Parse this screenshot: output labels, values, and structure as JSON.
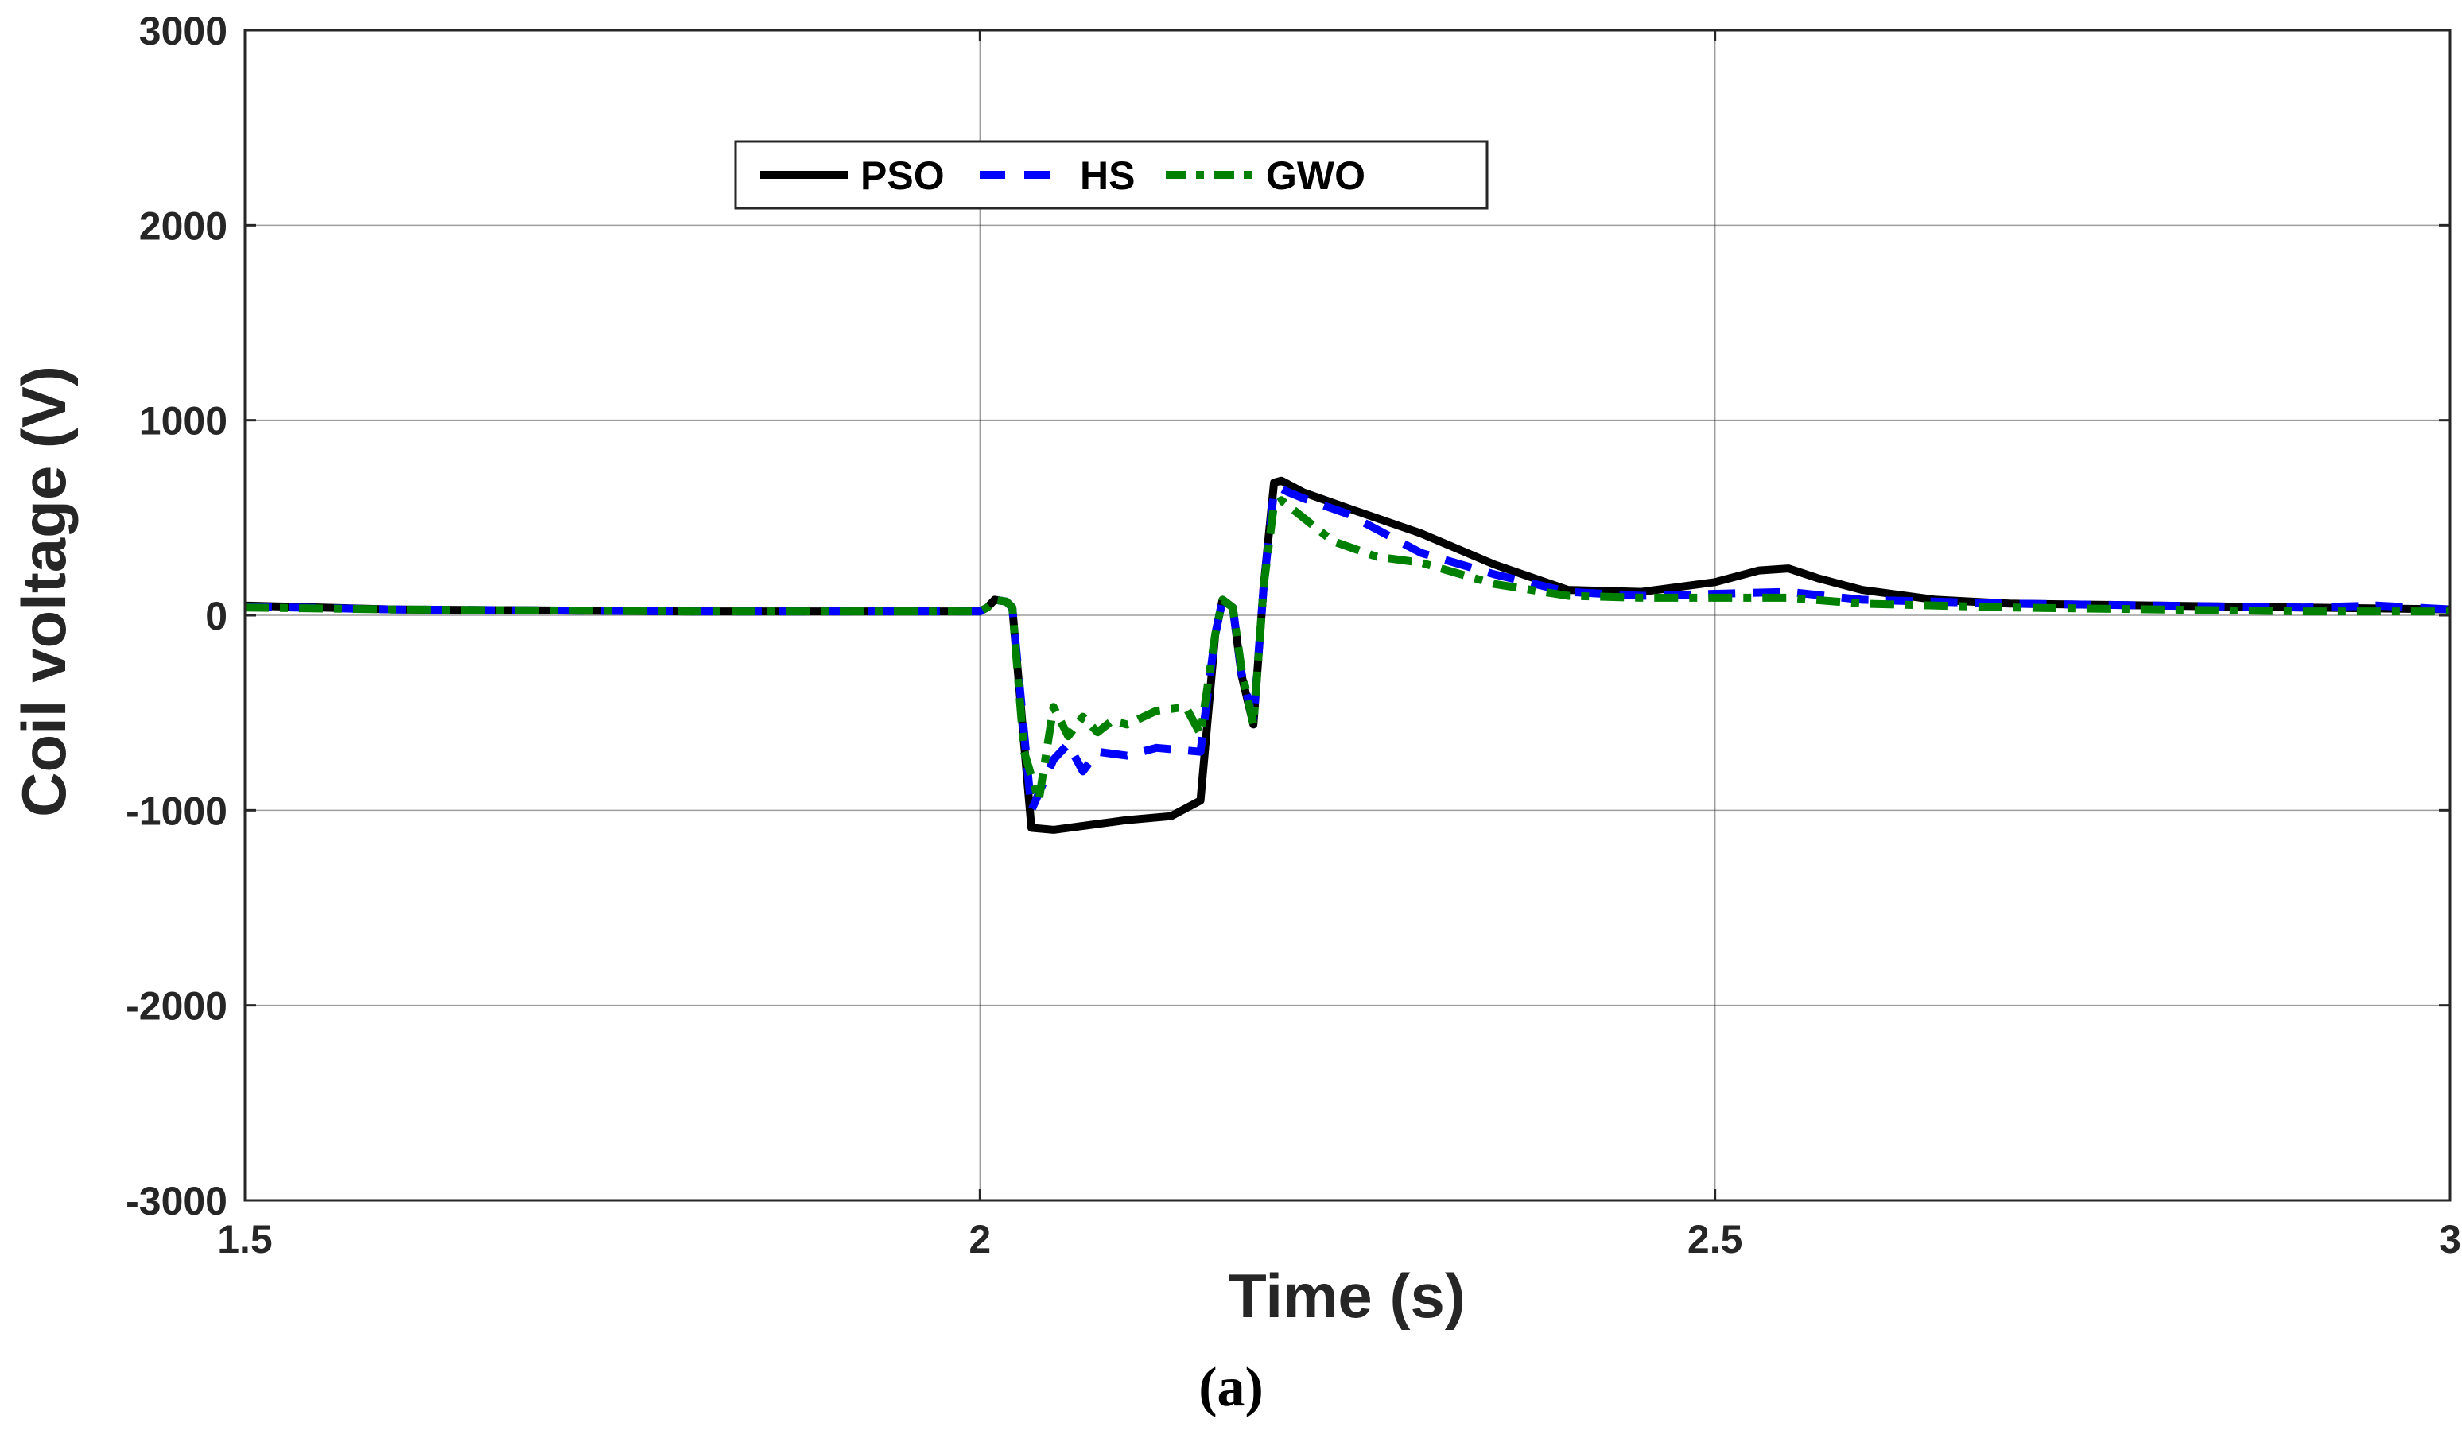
{
  "chart_data": {
    "type": "line",
    "xlabel": "Time (s)",
    "ylabel": "Coil voltage (V)",
    "caption": "(a)",
    "xlim": [
      1.5,
      3
    ],
    "ylim": [
      -3000,
      3000
    ],
    "x_ticks": [
      1.5,
      2,
      2.5,
      3
    ],
    "x_tick_labels": [
      "1.5",
      "2",
      "2.5",
      "3"
    ],
    "y_ticks": [
      -3000,
      -2000,
      -1000,
      0,
      1000,
      2000,
      3000
    ],
    "y_tick_labels": [
      "-3000",
      "-2000",
      "-1000",
      "0",
      "1000",
      "2000",
      "3000"
    ],
    "grid": true,
    "legend_position": "top-left",
    "legend_orientation": "horizontal",
    "series": [
      {
        "name": "PSO",
        "color": "#000000",
        "style": "solid",
        "x": [
          1.5,
          1.6,
          1.8,
          2.0,
          2.005,
          2.01,
          2.018,
          2.022,
          2.035,
          2.05,
          2.08,
          2.1,
          2.13,
          2.15,
          2.16,
          2.165,
          2.172,
          2.178,
          2.186,
          2.193,
          2.2,
          2.205,
          2.21,
          2.22,
          2.25,
          2.3,
          2.35,
          2.4,
          2.45,
          2.5,
          2.53,
          2.55,
          2.57,
          2.6,
          2.65,
          2.7,
          2.8,
          2.9,
          3.0
        ],
        "y": [
          50,
          30,
          20,
          20,
          40,
          80,
          70,
          40,
          -1090,
          -1100,
          -1070,
          -1050,
          -1030,
          -950,
          -100,
          80,
          40,
          -310,
          -560,
          150,
          680,
          690,
          670,
          630,
          550,
          420,
          260,
          130,
          120,
          170,
          230,
          240,
          190,
          130,
          80,
          60,
          50,
          40,
          30
        ]
      },
      {
        "name": "HS",
        "color": "#0000ff",
        "style": "dashed",
        "x": [
          1.5,
          1.6,
          1.8,
          2.0,
          2.005,
          2.01,
          2.018,
          2.022,
          2.035,
          2.05,
          2.06,
          2.07,
          2.08,
          2.1,
          2.12,
          2.15,
          2.16,
          2.165,
          2.172,
          2.178,
          2.186,
          2.193,
          2.2,
          2.205,
          2.21,
          2.22,
          2.25,
          2.3,
          2.35,
          2.4,
          2.45,
          2.5,
          2.55,
          2.6,
          2.7,
          2.8,
          2.9,
          2.95,
          3.0
        ],
        "y": [
          45,
          30,
          20,
          20,
          40,
          80,
          70,
          40,
          -1000,
          -740,
          -660,
          -800,
          -700,
          -720,
          -680,
          -700,
          -100,
          80,
          40,
          -300,
          -540,
          150,
          640,
          650,
          630,
          600,
          520,
          320,
          210,
          120,
          100,
          110,
          120,
          80,
          60,
          50,
          40,
          50,
          30
        ]
      },
      {
        "name": "GWO",
        "color": "#008000",
        "style": "dashdot",
        "x": [
          1.5,
          1.6,
          1.8,
          2.0,
          2.005,
          2.01,
          2.018,
          2.022,
          2.03,
          2.04,
          2.05,
          2.06,
          2.07,
          2.08,
          2.09,
          2.1,
          2.12,
          2.14,
          2.15,
          2.16,
          2.165,
          2.172,
          2.178,
          2.186,
          2.193,
          2.2,
          2.205,
          2.21,
          2.22,
          2.24,
          2.27,
          2.3,
          2.35,
          2.4,
          2.45,
          2.5,
          2.55,
          2.6,
          2.7,
          2.8,
          2.9,
          3.0
        ],
        "y": [
          40,
          30,
          20,
          20,
          40,
          80,
          70,
          40,
          -700,
          -950,
          -470,
          -620,
          -520,
          -600,
          -540,
          -560,
          -490,
          -470,
          -610,
          -100,
          80,
          40,
          -280,
          -560,
          150,
          570,
          590,
          560,
          500,
          380,
          300,
          270,
          160,
          100,
          90,
          90,
          90,
          60,
          40,
          30,
          20,
          20
        ]
      }
    ]
  }
}
